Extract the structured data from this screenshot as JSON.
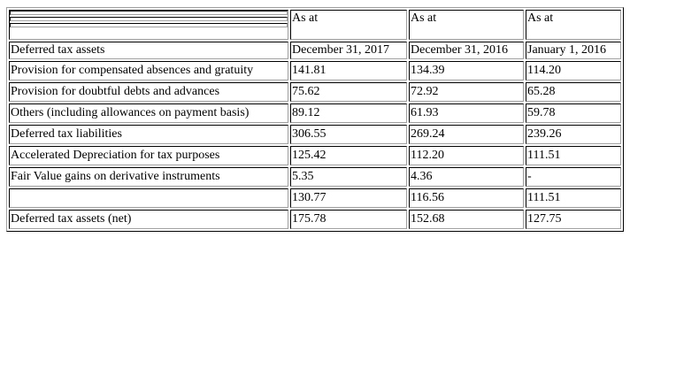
{
  "header": {
    "col1_top": "As at",
    "col2_top": "As at",
    "col3_top": "As at",
    "row_label": "Deferred tax assets",
    "col1_date": "December 31, 2017",
    "col2_date": "December 31, 2016",
    "col3_date": "January 1, 2016"
  },
  "rows": [
    {
      "label": "Provision for compensated absences and gratuity",
      "v1": "141.81",
      "v2": "134.39",
      "v3": "114.20"
    },
    {
      "label": "Provision for doubtful debts and advances",
      "v1": "75.62",
      "v2": "72.92",
      "v3": "65.28"
    },
    {
      "label": "Others (including allowances on payment basis)",
      "v1": "89.12",
      "v2": "61.93",
      "v3": "59.78"
    },
    {
      "label": "Deferred tax liabilities",
      "v1": "306.55",
      "v2": "269.24",
      "v3": "239.26"
    },
    {
      "label": "Accelerated Depreciation for tax purposes",
      "v1": "125.42",
      "v2": "112.20",
      "v3": "111.51"
    },
    {
      "label": "Fair Value gains on derivative instruments",
      "v1": "5.35",
      "v2": "4.36",
      "v3": "-"
    },
    {
      "label": "",
      "v1": "130.77",
      "v2": "116.56",
      "v3": "111.51"
    },
    {
      "label": "Deferred tax assets (net)",
      "v1": "175.78",
      "v2": "152.68",
      "v3": "127.75"
    }
  ]
}
